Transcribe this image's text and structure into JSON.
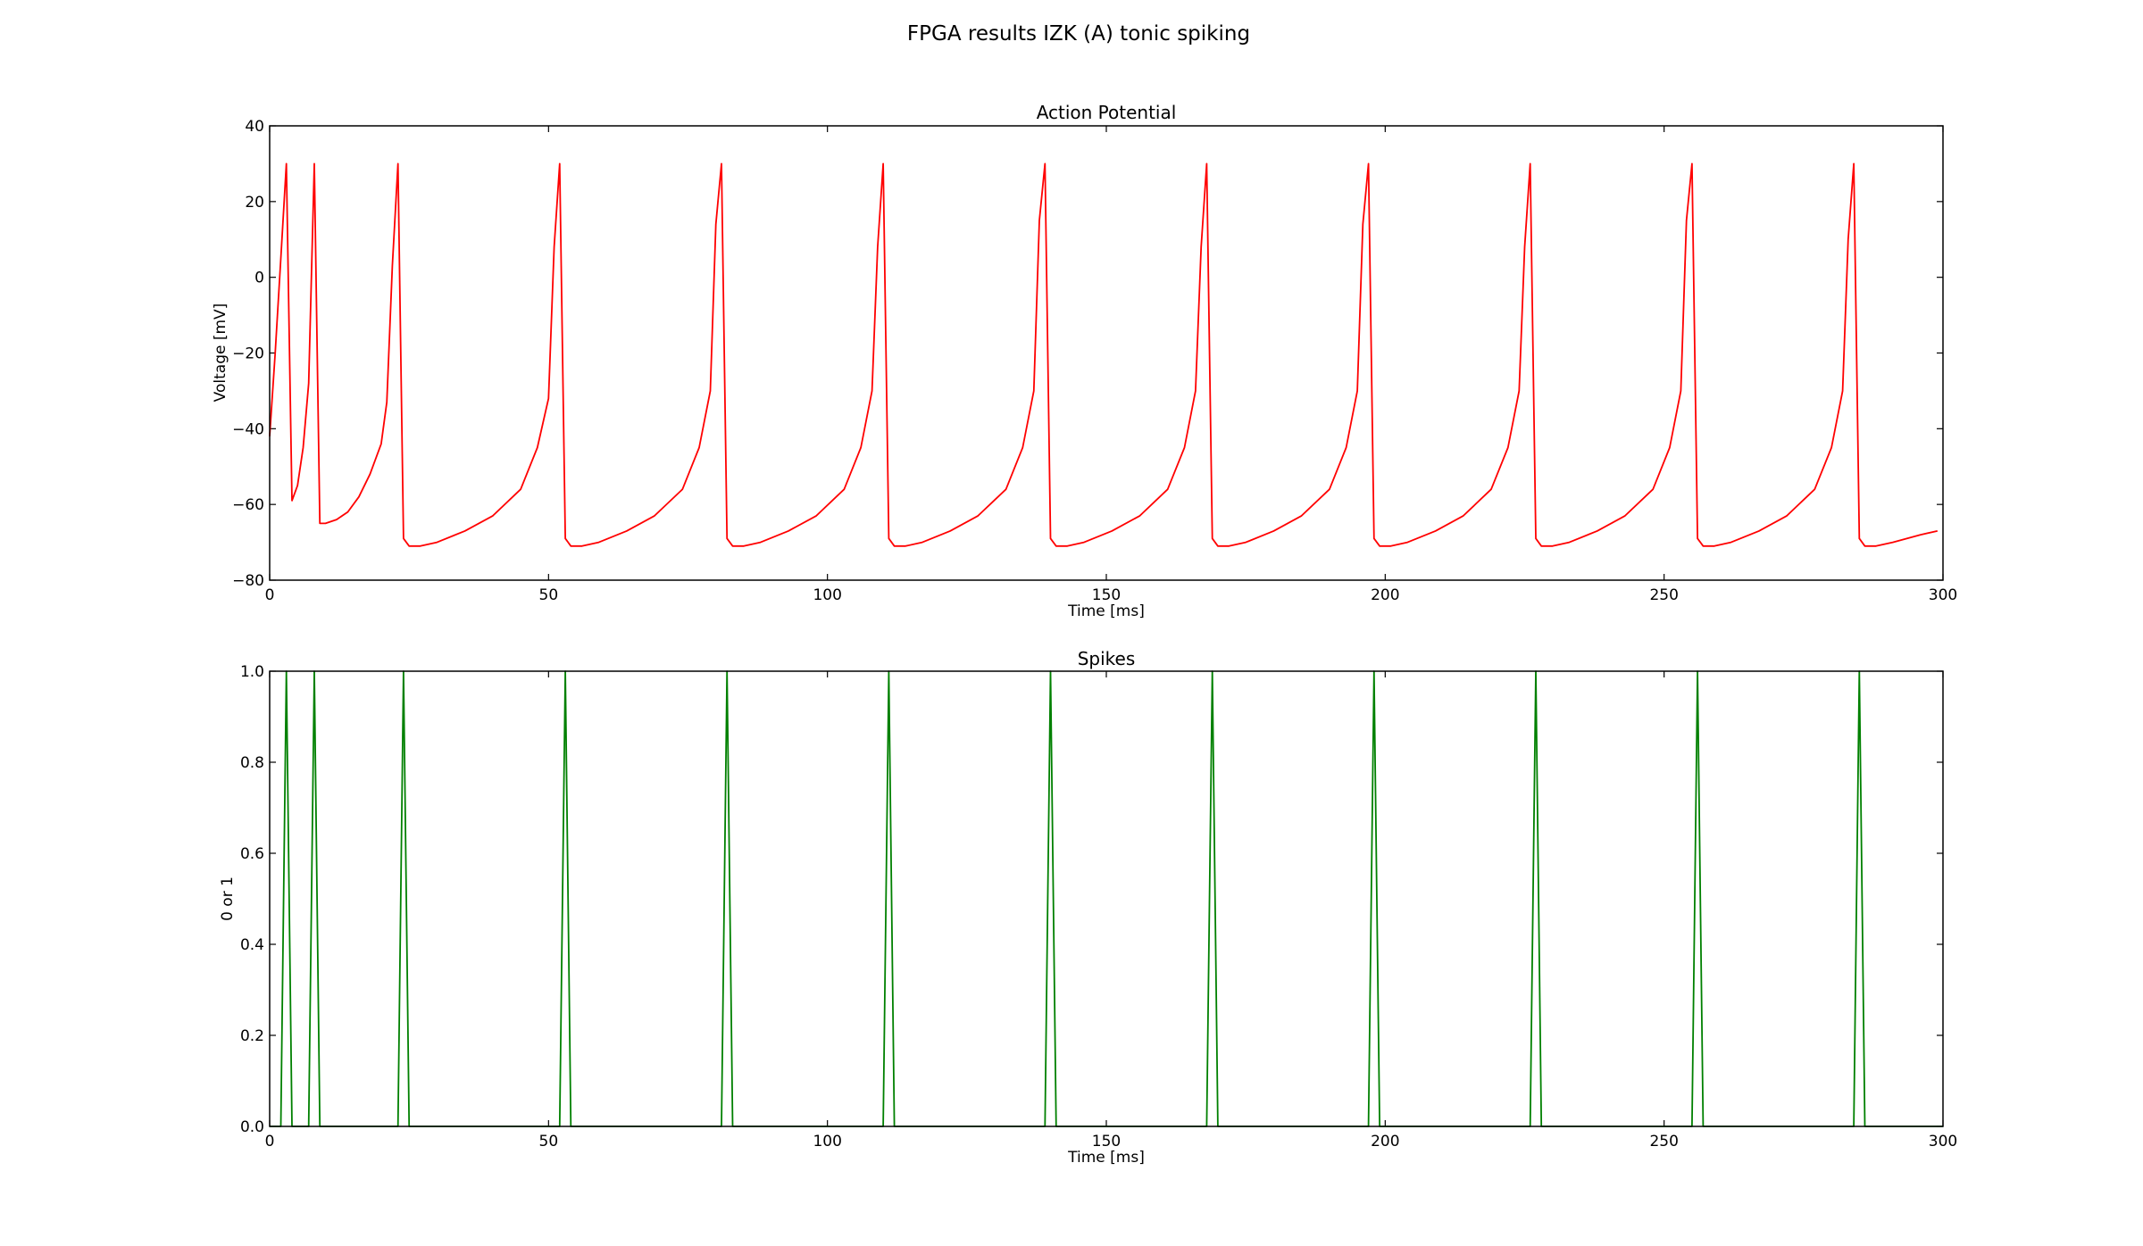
{
  "figure": {
    "title": "FPGA results IZK (A) tonic spiking"
  },
  "chart_data": [
    {
      "type": "line",
      "title": "Action Potential",
      "xlabel": "Time [ms]",
      "ylabel": "Voltage [mV]",
      "xlim": [
        0,
        300
      ],
      "ylim": [
        -80,
        40
      ],
      "xticks": [
        0,
        50,
        100,
        150,
        200,
        250,
        300
      ],
      "yticks": [
        -80,
        -60,
        -40,
        -20,
        0,
        20,
        40
      ],
      "grid": false,
      "color": "#ff0000",
      "series": [
        {
          "name": "",
          "x": [
            0,
            1,
            2,
            3,
            4,
            5,
            6,
            7,
            8,
            9,
            10,
            12,
            14,
            16,
            18,
            20,
            21,
            22,
            23,
            24,
            25,
            26,
            27,
            30,
            35,
            40,
            45,
            48,
            50,
            51,
            52,
            53,
            54,
            55,
            56,
            59,
            64,
            69,
            74,
            77,
            79,
            80,
            81,
            82,
            83,
            84,
            85,
            88,
            93,
            98,
            103,
            106,
            108,
            109,
            110,
            111,
            112,
            113,
            114,
            117,
            122,
            127,
            132,
            135,
            137,
            138,
            139,
            140,
            141,
            142,
            143,
            146,
            151,
            156,
            161,
            164,
            166,
            167,
            168,
            169,
            170,
            171,
            172,
            175,
            180,
            185,
            190,
            193,
            195,
            196,
            197,
            198,
            199,
            200,
            201,
            204,
            209,
            214,
            219,
            222,
            224,
            225,
            226,
            227,
            228,
            229,
            230,
            233,
            238,
            243,
            248,
            251,
            253,
            254,
            255,
            256,
            257,
            258,
            259,
            262,
            267,
            272,
            277,
            280,
            282,
            283,
            284,
            285,
            286,
            287,
            288,
            291,
            296,
            299
          ],
          "values": [
            -42,
            -20,
            5,
            30,
            -59,
            -55,
            -45,
            -28,
            30,
            -65,
            -65,
            -64,
            -62,
            -58,
            -52,
            -44,
            -33,
            3,
            30,
            -69,
            -71,
            -71,
            -71,
            -70,
            -67,
            -63,
            -56,
            -45,
            -32,
            8,
            30,
            -69,
            -71,
            -71,
            -71,
            -70,
            -67,
            -63,
            -56,
            -45,
            -30,
            14,
            30,
            -69,
            -71,
            -71,
            -71,
            -70,
            -67,
            -63,
            -56,
            -45,
            -30,
            8,
            30,
            -69,
            -71,
            -71,
            -71,
            -70,
            -67,
            -63,
            -56,
            -45,
            -30,
            15,
            30,
            -69,
            -71,
            -71,
            -71,
            -70,
            -67,
            -63,
            -56,
            -45,
            -30,
            8,
            30,
            -69,
            -71,
            -71,
            -71,
            -70,
            -67,
            -63,
            -56,
            -45,
            -30,
            14,
            30,
            -69,
            -71,
            -71,
            -71,
            -70,
            -67,
            -63,
            -56,
            -45,
            -30,
            8,
            30,
            -69,
            -71,
            -71,
            -71,
            -70,
            -67,
            -63,
            -56,
            -45,
            -30,
            15,
            30,
            -69,
            -71,
            -71,
            -71,
            -70,
            -67,
            -63,
            -56,
            -45,
            -30,
            10,
            30,
            -69,
            -71,
            -71,
            -71,
            -70,
            -68,
            -67
          ]
        }
      ]
    },
    {
      "type": "line",
      "title": "Spikes",
      "xlabel": "Time [ms]",
      "ylabel": "0 or 1",
      "xlim": [
        0,
        300
      ],
      "ylim": [
        0,
        1
      ],
      "xticks": [
        0,
        50,
        100,
        150,
        200,
        250,
        300
      ],
      "yticks": [
        0.0,
        0.2,
        0.4,
        0.6,
        0.8,
        1.0
      ],
      "ytick_labels": [
        "0.0",
        "0.2",
        "0.4",
        "0.6",
        "0.8",
        "1.0"
      ],
      "grid": false,
      "color": "#008000",
      "spike_times": [
        3,
        8,
        24,
        53,
        82,
        111,
        140,
        169,
        198,
        227,
        256,
        285
      ],
      "spike_half_width": 1,
      "baseline": 0,
      "peak": 1
    }
  ]
}
